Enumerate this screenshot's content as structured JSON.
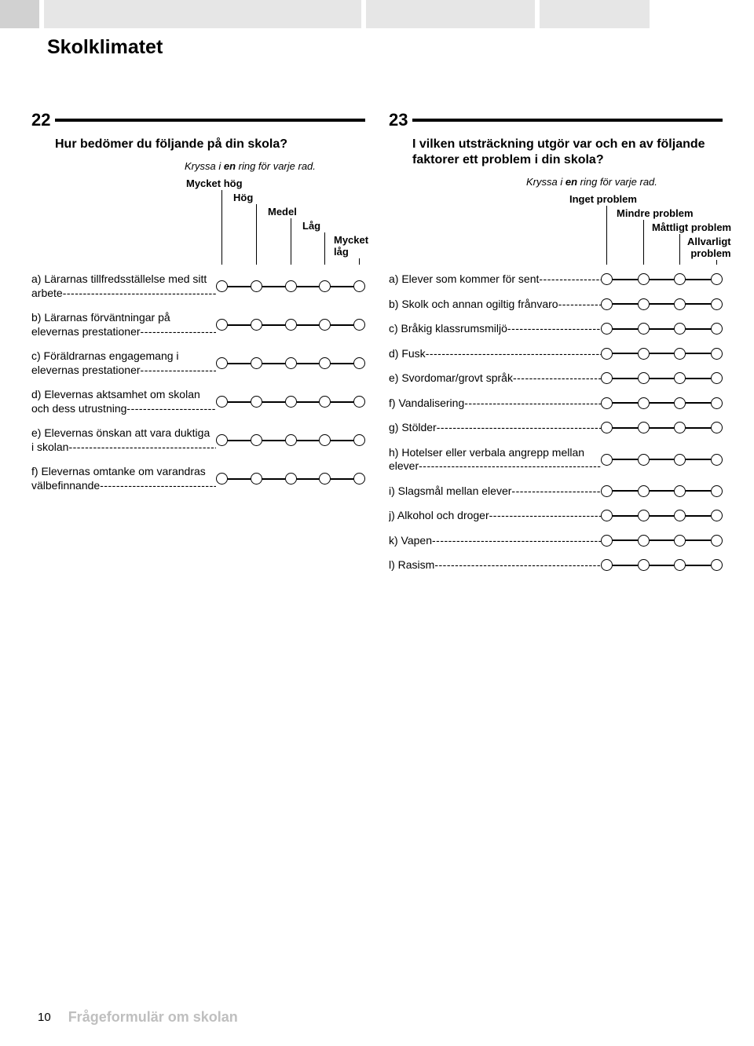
{
  "colors": {
    "tab_accent": "#d1d1d1",
    "tab_light": "#e6e6e6",
    "rule": "#000000",
    "circle_border": "#000000",
    "footer_gray": "#bfbfbf",
    "background": "#ffffff",
    "text": "#000000"
  },
  "section_title": "Skolklimatet",
  "footer": {
    "page_number": "10",
    "title": "Frågeformulär om skolan"
  },
  "q22": {
    "number": "22",
    "title": "Hur bedömer du följande på din skola?",
    "instruction_prefix": "Kryssa i ",
    "instruction_em": "en",
    "instruction_suffix": " ring för varje rad.",
    "scale": [
      "Mycket hög",
      "Hög",
      "Medel",
      "Låg",
      "Mycket\nlåg"
    ],
    "items": [
      "a) Lärarnas tillfredsställelse med sitt arbete",
      "b) Lärarnas förväntningar på elevernas prestationer",
      "c) Föräldrarnas engagemang i elevernas prestationer",
      "d) Elevernas aktsamhet om skolan och dess utrustning",
      "e) Elevernas önskan att vara duktiga i skolan",
      "f) Elevernas omtanke om varandras välbefinnande"
    ]
  },
  "q23": {
    "number": "23",
    "title": "I vilken utsträckning utgör var och en av följande faktorer ett problem i din skola?",
    "instruction_prefix": "Kryssa i ",
    "instruction_em": "en",
    "instruction_suffix": " ring för varje rad.",
    "scale": [
      "Inget problem",
      "Mindre problem",
      "Måttligt problem",
      "Allvarligt\nproblem"
    ],
    "items": [
      "a) Elever som kommer för sent",
      "b) Skolk och annan ogiltig frånvaro",
      "c) Bråkig klassrumsmiljö",
      "d) Fusk",
      "e) Svordomar/grovt språk",
      "f) Vandalisering",
      "g) Stölder",
      "h) Hotelser eller verbala angrepp mellan elever",
      "i) Slagsmål mellan elever",
      "j) Alkohol och droger",
      "k) Vapen",
      "l) Rasism"
    ]
  }
}
